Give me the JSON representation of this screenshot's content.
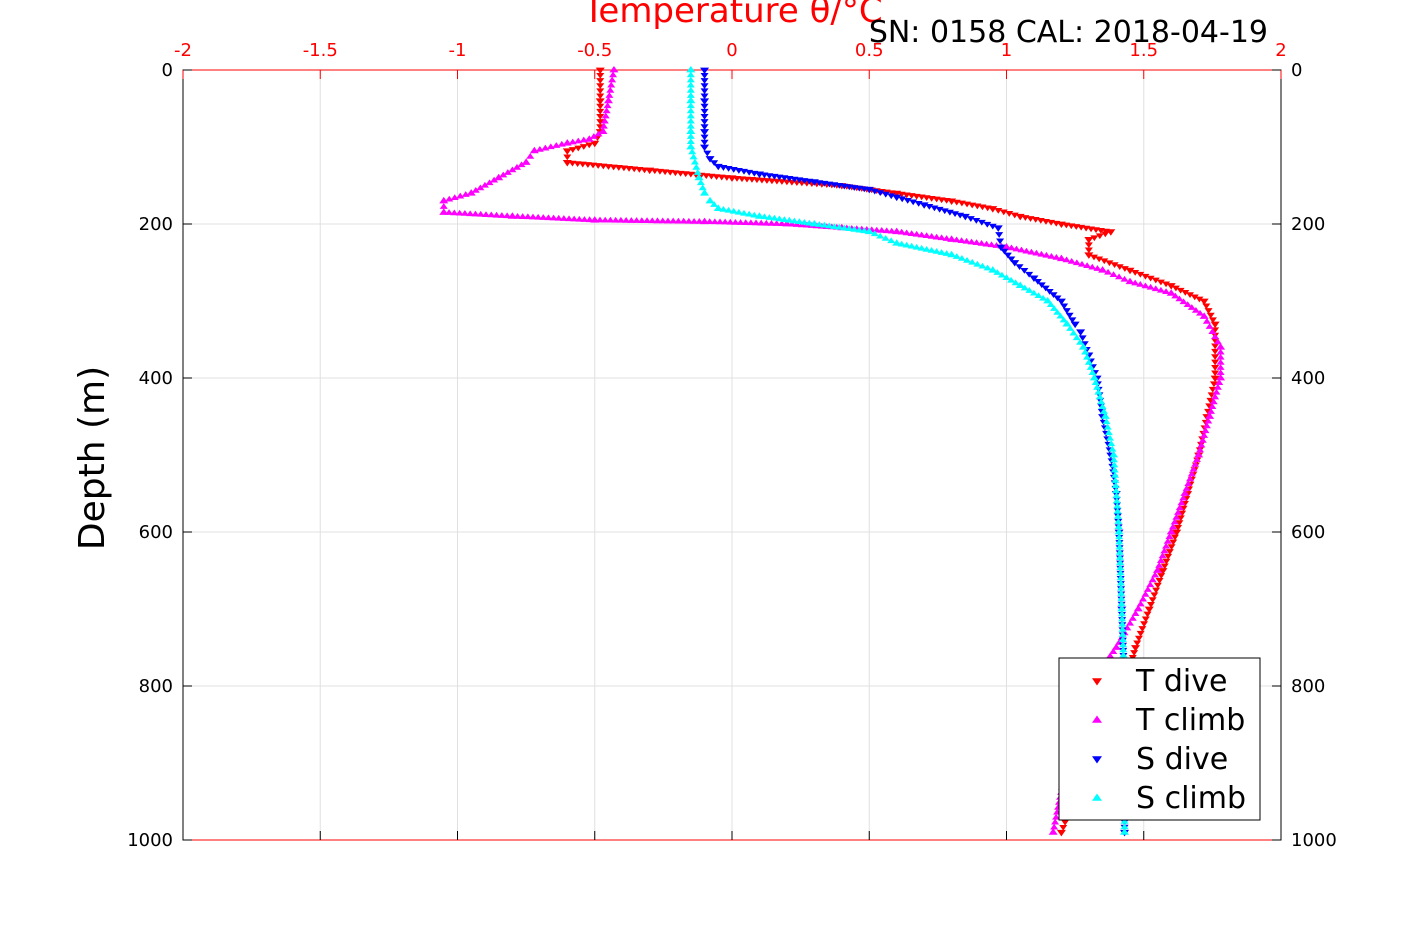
{
  "chart_data": {
    "type": "scatter",
    "title": "Temperature θ/°C",
    "annotation": "SN: 0158  CAL: 2018-04-19",
    "xlabel": "Temperature θ/°C",
    "ylabel": "Depth (m)",
    "xlim": [
      -2,
      2
    ],
    "ylim": [
      0,
      1000
    ],
    "y_reversed": true,
    "x_ticks": [
      "-2",
      "-1.5",
      "-1",
      "-0.5",
      "0",
      "0.5",
      "1",
      "1.5",
      "2"
    ],
    "y_ticks": [
      "0",
      "200",
      "400",
      "600",
      "800",
      "1000"
    ],
    "grid": true,
    "legend_position": "bottom-right",
    "series": [
      {
        "name": "T dive",
        "color": "#ff0000",
        "marker": "triangle-down",
        "x": [
          -0.48,
          -0.48,
          -0.48,
          -0.5,
          -0.6,
          -0.6,
          -0.3,
          0.0,
          0.4,
          0.6,
          0.8,
          0.95,
          1.05,
          1.2,
          1.38,
          1.3,
          1.3,
          1.45,
          1.6,
          1.72,
          1.76,
          1.76,
          1.73,
          1.7,
          1.66,
          1.62,
          1.57,
          1.52,
          1.47,
          1.43,
          1.37,
          1.3,
          1.24,
          1.2
        ],
        "y": [
          0,
          40,
          80,
          95,
          105,
          120,
          130,
          140,
          150,
          160,
          170,
          180,
          190,
          200,
          210,
          220,
          240,
          260,
          280,
          300,
          330,
          400,
          450,
          500,
          550,
          600,
          650,
          700,
          750,
          800,
          850,
          900,
          950,
          990
        ]
      },
      {
        "name": "T climb",
        "color": "#ff00ff",
        "marker": "triangle-up",
        "x": [
          -0.43,
          -0.45,
          -0.47,
          -0.52,
          -0.6,
          -0.72,
          -0.75,
          -0.85,
          -0.95,
          -1.05,
          -1.05,
          -0.8,
          -0.5,
          -0.1,
          0.2,
          0.4,
          0.6,
          0.8,
          1.0,
          1.2,
          1.35,
          1.45,
          1.6,
          1.72,
          1.78,
          1.78,
          1.74,
          1.7,
          1.65,
          1.6,
          1.55,
          1.48,
          1.4,
          1.3,
          1.22,
          1.17
        ],
        "y": [
          0,
          40,
          80,
          90,
          95,
          105,
          120,
          140,
          160,
          170,
          185,
          190,
          195,
          197,
          200,
          205,
          210,
          220,
          230,
          245,
          260,
          275,
          290,
          320,
          360,
          400,
          450,
          500,
          550,
          600,
          650,
          700,
          750,
          800,
          900,
          990
        ]
      },
      {
        "name": "S dive",
        "color": "#0000ff",
        "marker": "triangle-down",
        "x": [
          -0.1,
          -0.1,
          -0.1,
          -0.1,
          -0.08,
          -0.05,
          0.1,
          0.3,
          0.5,
          0.6,
          0.7,
          0.85,
          0.97,
          0.98,
          1.03,
          1.1,
          1.2,
          1.25,
          1.27,
          1.3,
          1.33,
          1.35,
          1.38,
          1.4,
          1.41,
          1.42,
          1.43,
          1.43,
          1.43
        ],
        "y": [
          0,
          40,
          80,
          100,
          115,
          125,
          135,
          145,
          155,
          165,
          175,
          190,
          205,
          230,
          250,
          270,
          300,
          330,
          340,
          370,
          400,
          450,
          500,
          550,
          600,
          700,
          800,
          900,
          990
        ]
      },
      {
        "name": "S climb",
        "color": "#00ffff",
        "marker": "triangle-up",
        "x": [
          -0.15,
          -0.15,
          -0.15,
          -0.15,
          -0.12,
          -0.1,
          -0.08,
          -0.05,
          0.1,
          0.3,
          0.5,
          0.6,
          0.8,
          0.95,
          1.05,
          1.15,
          1.22,
          1.28,
          1.32,
          1.36,
          1.39,
          1.41,
          1.42,
          1.43,
          1.43,
          1.43
        ],
        "y": [
          0,
          40,
          80,
          100,
          140,
          160,
          170,
          180,
          190,
          200,
          210,
          225,
          240,
          260,
          280,
          300,
          330,
          360,
          400,
          450,
          500,
          600,
          700,
          800,
          900,
          990
        ]
      }
    ]
  }
}
